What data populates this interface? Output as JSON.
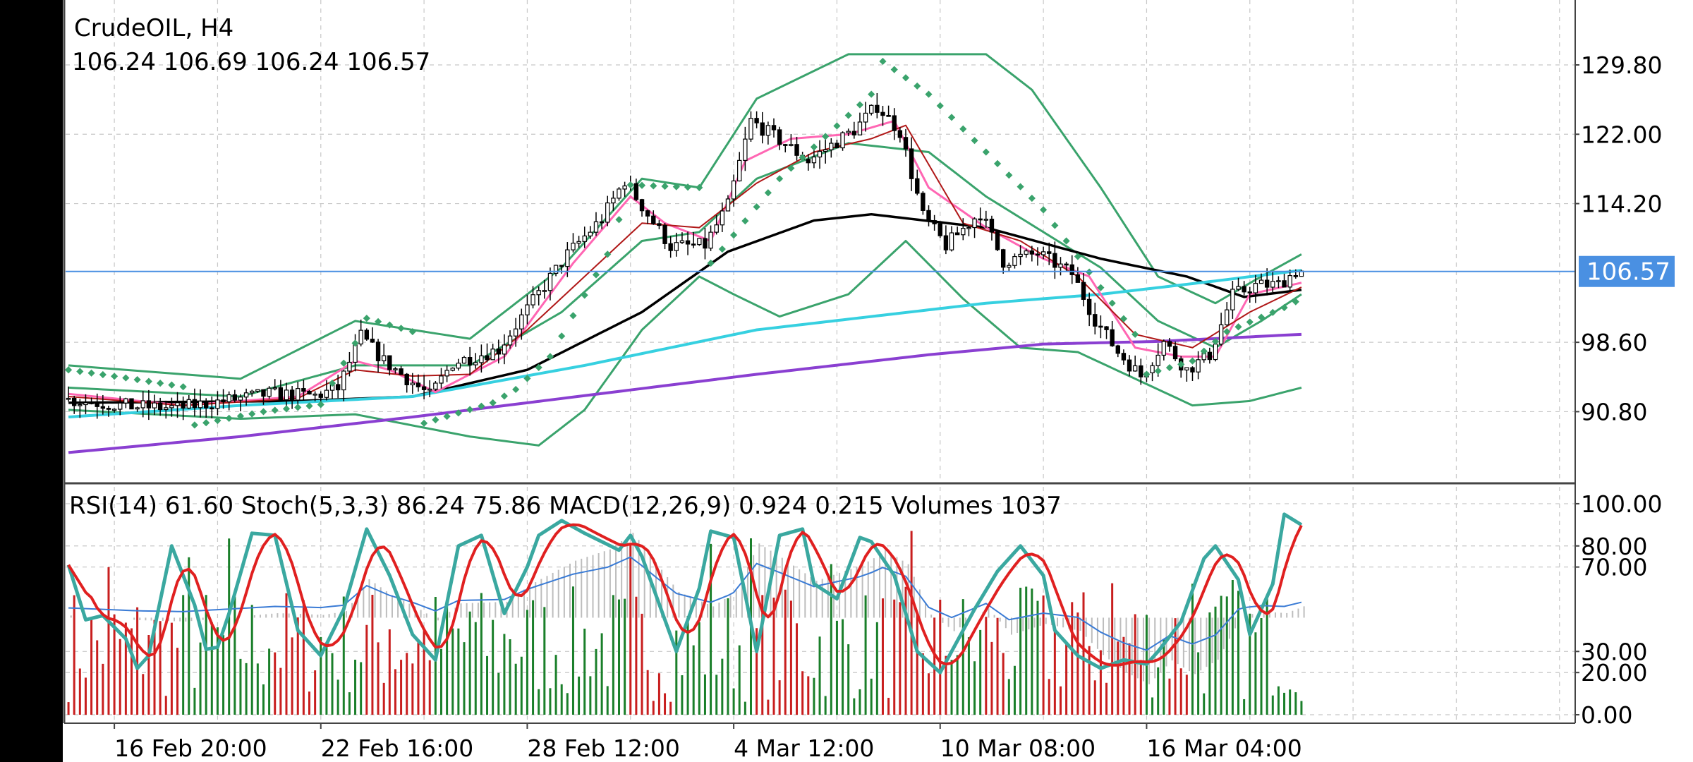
{
  "symbol_title": "CrudeOIL, H4",
  "ohlc_line": "106.24 106.69 106.24 106.57",
  "current_price": "106.57",
  "indicators_line": "RSI(14) 61.60 Stoch(5,3,3) 86.24 75.86 MACD(12,26,9) 0.924 0.215 Volumes 1037",
  "colors": {
    "background": "#ffffff",
    "grid": "#c8c8c8",
    "price_line": "#4a90e2",
    "price_label_bg": "#4a90e2",
    "bull_candle": "#ffffff",
    "bear_candle": "#000000",
    "bollinger": "#3aa36c",
    "parabolic_sar": "#3aa36c",
    "sma_black": "#000000",
    "ma_cyan": "#36d0e0",
    "ma_purple": "#8a3fd1",
    "ma_pink": "#ff66b3",
    "ma_darkred": "#b01818",
    "stoch_main": "#3aa8a0",
    "stoch_signal": "#e02020",
    "rsi": "#3a7bd5",
    "volume_up": "#1a7f2a",
    "volume_down": "#c81e1e",
    "macd_hist": "#bdbdbd"
  },
  "chart_data": [
    {
      "type": "line",
      "name": "main",
      "symbol": "CrudeOIL",
      "timeframe": "H4",
      "y_ticks": [
        "129.80",
        "122.00",
        "114.20",
        "106.57",
        "98.60",
        "90.80"
      ],
      "y_tick_values": [
        129.8,
        122.0,
        114.2,
        106.57,
        98.6,
        90.8
      ],
      "ylim": [
        82.9,
        137.1
      ],
      "x_ticks": [
        "16 Feb 20:00",
        "22 Feb 16:00",
        "28 Feb 12:00",
        "4 Mar 12:00",
        "10 Mar 08:00",
        "16 Mar 04:00"
      ],
      "x_tick_index": [
        8,
        44,
        80,
        116,
        152,
        188
      ],
      "candle_count": 216,
      "grid": true,
      "last_price": 106.57,
      "candles": {
        "close_anchors": [
          [
            0,
            92.2
          ],
          [
            12,
            91.4
          ],
          [
            20,
            91.2
          ],
          [
            28,
            92.0
          ],
          [
            36,
            92.8
          ],
          [
            44,
            92.6
          ],
          [
            48,
            93.4
          ],
          [
            52,
            99.3
          ],
          [
            56,
            96.5
          ],
          [
            64,
            92.6
          ],
          [
            68,
            96.3
          ],
          [
            76,
            97.8
          ],
          [
            82,
            103.2
          ],
          [
            88,
            108.5
          ],
          [
            94,
            112.5
          ],
          [
            98,
            116.8
          ],
          [
            102,
            113.0
          ],
          [
            106,
            109.4
          ],
          [
            112,
            109.5
          ],
          [
            116,
            114.0
          ],
          [
            120,
            123.5
          ],
          [
            124,
            121.8
          ],
          [
            130,
            119.0
          ],
          [
            138,
            122.5
          ],
          [
            142,
            125.2
          ],
          [
            146,
            122.3
          ],
          [
            150,
            112.8
          ],
          [
            154,
            109.5
          ],
          [
            160,
            113.2
          ],
          [
            164,
            107.7
          ],
          [
            170,
            108.6
          ],
          [
            176,
            106.3
          ],
          [
            180,
            101.2
          ],
          [
            184,
            97.5
          ],
          [
            188,
            94.8
          ],
          [
            192,
            98.6
          ],
          [
            196,
            95.5
          ],
          [
            200,
            97.2
          ],
          [
            204,
            103.9
          ],
          [
            208,
            105.0
          ],
          [
            212,
            105.1
          ],
          [
            215,
            106.57
          ]
        ]
      },
      "series": [
        {
          "style": "bollinger_upper",
          "values": [
            [
              0,
              96.0
            ],
            [
              30,
              94.5
            ],
            [
              50,
              101.0
            ],
            [
              70,
              99.0
            ],
            [
              86,
              107.0
            ],
            [
              100,
              117.0
            ],
            [
              110,
              116.0
            ],
            [
              120,
              126.0
            ],
            [
              136,
              131.0
            ],
            [
              150,
              131.0
            ],
            [
              160,
              131.0
            ],
            [
              168,
              127.0
            ],
            [
              180,
              116.0
            ],
            [
              190,
              106.0
            ],
            [
              200,
              103.0
            ],
            [
              208,
              106.0
            ],
            [
              215,
              108.5
            ]
          ]
        },
        {
          "style": "bollinger_middle",
          "values": [
            [
              0,
              93.5
            ],
            [
              30,
              92.5
            ],
            [
              50,
              96.0
            ],
            [
              70,
              96.0
            ],
            [
              86,
              102.0
            ],
            [
              100,
              110.0
            ],
            [
              110,
              111.0
            ],
            [
              120,
              117.0
            ],
            [
              136,
              121.0
            ],
            [
              150,
              120.0
            ],
            [
              160,
              115.0
            ],
            [
              170,
              111.0
            ],
            [
              180,
              107.0
            ],
            [
              190,
              101.0
            ],
            [
              200,
              98.0
            ],
            [
              208,
              101.0
            ],
            [
              215,
              104.0
            ]
          ]
        },
        {
          "style": "bollinger_lower",
          "values": [
            [
              0,
              91.0
            ],
            [
              30,
              90.0
            ],
            [
              50,
              90.5
            ],
            [
              70,
              88.0
            ],
            [
              82,
              87.0
            ],
            [
              90,
              91.0
            ],
            [
              100,
              100.0
            ],
            [
              110,
              106.0
            ],
            [
              116,
              104.0
            ],
            [
              124,
              101.5
            ],
            [
              136,
              104.0
            ],
            [
              146,
              110.0
            ],
            [
              156,
              103.5
            ],
            [
              166,
              98.0
            ],
            [
              176,
              97.5
            ],
            [
              186,
              94.5
            ],
            [
              196,
              91.5
            ],
            [
              206,
              92.0
            ],
            [
              215,
              93.5
            ]
          ]
        },
        {
          "style": "sma_black",
          "values": [
            [
              0,
              91.8
            ],
            [
              40,
              92.0
            ],
            [
              60,
              92.5
            ],
            [
              80,
              95.5
            ],
            [
              100,
              102.0
            ],
            [
              115,
              108.8
            ],
            [
              130,
              112.3
            ],
            [
              140,
              113.0
            ],
            [
              160,
              111.5
            ],
            [
              180,
              108.0
            ],
            [
              195,
              106.0
            ],
            [
              205,
              103.7
            ],
            [
              215,
              104.5
            ]
          ]
        },
        {
          "style": "ma_cyan",
          "values": [
            [
              0,
              90.2
            ],
            [
              30,
              91.5
            ],
            [
              60,
              92.5
            ],
            [
              90,
              96.0
            ],
            [
              120,
              100.0
            ],
            [
              160,
              103.0
            ],
            [
              180,
              104.0
            ],
            [
              200,
              105.5
            ],
            [
              215,
              106.7
            ]
          ]
        },
        {
          "style": "ma_purple",
          "values": [
            [
              0,
              86.2
            ],
            [
              30,
              88.0
            ],
            [
              60,
              90.2
            ],
            [
              90,
              92.6
            ],
            [
              120,
              95.0
            ],
            [
              150,
              97.2
            ],
            [
              170,
              98.4
            ],
            [
              190,
              98.7
            ],
            [
              215,
              99.5
            ]
          ]
        },
        {
          "style": "ma_pink",
          "values": [
            [
              0,
              92.8
            ],
            [
              20,
              91.5
            ],
            [
              40,
              92.5
            ],
            [
              50,
              96.5
            ],
            [
              56,
              95.5
            ],
            [
              64,
              93.0
            ],
            [
              76,
              97.0
            ],
            [
              88,
              107.5
            ],
            [
              98,
              115.0
            ],
            [
              104,
              112.0
            ],
            [
              112,
              110.0
            ],
            [
              118,
              119.0
            ],
            [
              126,
              121.5
            ],
            [
              136,
              122.0
            ],
            [
              144,
              123.5
            ],
            [
              150,
              116.0
            ],
            [
              160,
              111.5
            ],
            [
              170,
              108.0
            ],
            [
              178,
              106.0
            ],
            [
              186,
              98.0
            ],
            [
              194,
              97.0
            ],
            [
              200,
              97.0
            ],
            [
              206,
              104.0
            ],
            [
              215,
              105.3
            ]
          ]
        },
        {
          "style": "ma_darkred",
          "values": [
            [
              0,
              92.5
            ],
            [
              20,
              91.5
            ],
            [
              40,
              92.3
            ],
            [
              50,
              95.5
            ],
            [
              60,
              94.8
            ],
            [
              70,
              95.0
            ],
            [
              80,
              100.0
            ],
            [
              90,
              106.0
            ],
            [
              100,
              112.0
            ],
            [
              110,
              111.5
            ],
            [
              120,
              116.5
            ],
            [
              130,
              120.0
            ],
            [
              140,
              121.5
            ],
            [
              146,
              123.0
            ],
            [
              156,
              112.0
            ],
            [
              166,
              110.0
            ],
            [
              176,
              106.0
            ],
            [
              186,
              99.5
            ],
            [
              196,
              98.0
            ],
            [
              206,
              102.0
            ],
            [
              215,
              104.8
            ]
          ]
        }
      ],
      "parabolic_sar": [
        [
          0,
          95.5
        ],
        [
          10,
          94.6
        ],
        [
          20,
          93.6
        ],
        [
          22,
          89.3
        ],
        [
          34,
          90.8
        ],
        [
          44,
          91.6
        ],
        [
          46,
          94.0
        ],
        [
          50,
          98.5
        ],
        [
          52,
          101.3
        ],
        [
          60,
          99.8
        ],
        [
          62,
          89.5
        ],
        [
          74,
          91.8
        ],
        [
          78,
          93.3
        ],
        [
          84,
          97.0
        ],
        [
          94,
          108.5
        ],
        [
          98,
          116.3
        ],
        [
          110,
          116.0
        ],
        [
          112,
          107.5
        ],
        [
          124,
          117.0
        ],
        [
          140,
          126.5
        ],
        [
          142,
          130.2
        ],
        [
          150,
          126.5
        ],
        [
          170,
          113.5
        ],
        [
          182,
          103.0
        ],
        [
          186,
          99.5
        ],
        [
          188,
          95.0
        ],
        [
          196,
          96.5
        ],
        [
          202,
          99.8
        ],
        [
          212,
          102.5
        ],
        [
          215,
          103.5
        ]
      ]
    },
    {
      "type": "line",
      "name": "oscillators",
      "y_ticks": [
        "100.00",
        "80.00",
        "70.00",
        "30.00",
        "20.00",
        "0.00"
      ],
      "y_tick_values": [
        100,
        80,
        70,
        30,
        20,
        0
      ],
      "ylim": [
        -4,
        108
      ],
      "rsi": 61.6,
      "stochastic": {
        "k": 86.24,
        "d": 75.86
      },
      "macd": {
        "main": 0.924,
        "signal": 0.215
      },
      "volume_last": 1037,
      "stoch_main": [
        [
          0,
          71
        ],
        [
          3,
          45
        ],
        [
          6,
          47
        ],
        [
          10,
          36
        ],
        [
          12,
          22
        ],
        [
          14,
          28
        ],
        [
          18,
          80
        ],
        [
          22,
          52
        ],
        [
          24,
          31
        ],
        [
          26,
          32
        ],
        [
          28,
          48
        ],
        [
          32,
          86
        ],
        [
          36,
          85
        ],
        [
          40,
          40
        ],
        [
          44,
          28
        ],
        [
          48,
          50
        ],
        [
          52,
          88
        ],
        [
          56,
          66
        ],
        [
          60,
          38
        ],
        [
          64,
          26
        ],
        [
          68,
          80
        ],
        [
          72,
          85
        ],
        [
          76,
          48
        ],
        [
          80,
          70
        ],
        [
          82,
          85
        ],
        [
          86,
          92
        ],
        [
          90,
          86
        ],
        [
          96,
          78
        ],
        [
          98,
          85
        ],
        [
          100,
          75
        ],
        [
          106,
          30
        ],
        [
          110,
          60
        ],
        [
          112,
          87
        ],
        [
          116,
          84
        ],
        [
          120,
          30
        ],
        [
          124,
          85
        ],
        [
          128,
          88
        ],
        [
          130,
          62
        ],
        [
          134,
          55
        ],
        [
          138,
          84
        ],
        [
          140,
          82
        ],
        [
          144,
          66
        ],
        [
          148,
          30
        ],
        [
          152,
          20
        ],
        [
          154,
          30
        ],
        [
          158,
          50
        ],
        [
          162,
          68
        ],
        [
          166,
          80
        ],
        [
          170,
          66
        ],
        [
          172,
          40
        ],
        [
          176,
          28
        ],
        [
          180,
          22
        ],
        [
          184,
          26
        ],
        [
          188,
          24
        ],
        [
          190,
          30
        ],
        [
          194,
          44
        ],
        [
          198,
          74
        ],
        [
          200,
          80
        ],
        [
          204,
          64
        ],
        [
          206,
          38
        ],
        [
          210,
          62
        ],
        [
          212,
          95
        ],
        [
          215,
          90
        ]
      ]
    }
  ]
}
